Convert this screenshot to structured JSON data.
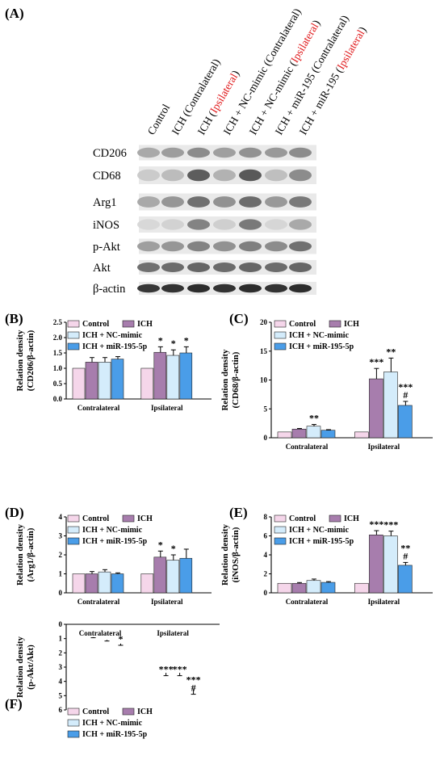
{
  "panel_labels": [
    "(A)",
    "(B)",
    "(C)",
    "(D)",
    "(E)",
    "(F)"
  ],
  "blot": {
    "lanes": [
      {
        "prefix": "Control",
        "highlight": "",
        "suffix": ""
      },
      {
        "prefix": "ICH (Contralateral)",
        "highlight": "",
        "suffix": ""
      },
      {
        "prefix": "ICH (",
        "highlight": "Ipsilateral",
        "suffix": ")"
      },
      {
        "prefix": "ICH + NC-mimic (Contralateral)",
        "highlight": "",
        "suffix": ""
      },
      {
        "prefix": "ICH + NC-mimic (",
        "highlight": "Ipsilateral",
        "suffix": ")"
      },
      {
        "prefix": "ICH + miR-195 (Contralateral)",
        "highlight": "",
        "suffix": ""
      },
      {
        "prefix": "ICH + miR-195 (",
        "highlight": "Ipsilateral",
        "suffix": ")"
      }
    ],
    "highlight_color": "#e0191b",
    "proteins": [
      "CD206",
      "CD68",
      "Arg1",
      "iNOS",
      "p-Akt",
      "Akt",
      "β-actin"
    ],
    "band_intensity": [
      [
        0.3,
        0.36,
        0.45,
        0.35,
        0.42,
        0.38,
        0.45
      ],
      [
        0.12,
        0.2,
        0.7,
        0.25,
        0.72,
        0.18,
        0.45
      ],
      [
        0.3,
        0.4,
        0.6,
        0.42,
        0.62,
        0.38,
        0.55
      ],
      [
        0.05,
        0.08,
        0.5,
        0.1,
        0.55,
        0.06,
        0.3
      ],
      [
        0.35,
        0.4,
        0.5,
        0.42,
        0.52,
        0.45,
        0.6
      ],
      [
        0.6,
        0.62,
        0.65,
        0.62,
        0.65,
        0.62,
        0.65
      ],
      [
        0.9,
        0.92,
        0.95,
        0.92,
        0.95,
        0.92,
        0.95
      ]
    ]
  },
  "legend_labels": [
    "Control",
    "ICH",
    "ICH + NC-mimic",
    "ICH + miR-195-5p"
  ],
  "colors": {
    "Control": "#f5d6ea",
    "ICH": "#a77dad",
    "ICH + NC-mimic": "#d4ecfb",
    "ICH + miR-195-5p": "#4a9de8"
  },
  "chart_data": [
    {
      "panel": "(B)",
      "type": "bar",
      "categories": [
        "Contralateral",
        "Ipsilateral"
      ],
      "ylabel": [
        "Relation density",
        "(CD206/β-actin)"
      ],
      "ylim": [
        0,
        2.5
      ],
      "yticks": [
        0,
        0.5,
        1.0,
        1.5,
        2.0,
        2.5
      ],
      "series": [
        {
          "name": "Control",
          "values": [
            1.0,
            1.0
          ],
          "errors": [
            0,
            0
          ],
          "marks": [
            "",
            ""
          ]
        },
        {
          "name": "ICH",
          "values": [
            1.2,
            1.52
          ],
          "errors": [
            0.15,
            0.18
          ],
          "marks": [
            "",
            "*"
          ]
        },
        {
          "name": "ICH + NC-mimic",
          "values": [
            1.2,
            1.42
          ],
          "errors": [
            0.15,
            0.18
          ],
          "marks": [
            "",
            "*"
          ]
        },
        {
          "name": "ICH + miR-195-5p",
          "values": [
            1.3,
            1.5
          ],
          "errors": [
            0.08,
            0.2
          ],
          "marks": [
            "",
            "*"
          ]
        }
      ]
    },
    {
      "panel": "(C)",
      "type": "bar",
      "categories": [
        "Contralateral",
        "Ipsilateral"
      ],
      "ylabel": [
        "Relation density",
        "(CD68/β-actin)"
      ],
      "ylim": [
        0,
        20
      ],
      "yticks": [
        0,
        5,
        10,
        15,
        20
      ],
      "series": [
        {
          "name": "Control",
          "values": [
            1.0,
            1.0
          ],
          "errors": [
            0,
            0
          ],
          "marks": [
            "",
            ""
          ]
        },
        {
          "name": "ICH",
          "values": [
            1.5,
            10.2
          ],
          "errors": [
            0.1,
            1.8
          ],
          "marks": [
            "",
            "***"
          ]
        },
        {
          "name": "ICH + NC-mimic",
          "values": [
            2.0,
            11.4
          ],
          "errors": [
            0.3,
            2.4
          ],
          "marks": [
            "**",
            "**"
          ]
        },
        {
          "name": "ICH + miR-195-5p",
          "values": [
            1.3,
            5.6
          ],
          "errors": [
            0.1,
            0.7
          ],
          "marks": [
            "",
            "***\n#"
          ]
        }
      ]
    },
    {
      "panel": "(D)",
      "type": "bar",
      "categories": [
        "Contralateral",
        "Ipsilateral"
      ],
      "ylabel": [
        "Relation density",
        "(Arg1/β-actin)"
      ],
      "ylim": [
        0,
        4
      ],
      "yticks": [
        0,
        1,
        2,
        3,
        4
      ],
      "series": [
        {
          "name": "Control",
          "values": [
            1.0,
            1.0
          ],
          "errors": [
            0,
            0
          ],
          "marks": [
            "",
            ""
          ]
        },
        {
          "name": "ICH",
          "values": [
            1.0,
            1.88
          ],
          "errors": [
            0.12,
            0.32
          ],
          "marks": [
            "",
            "*"
          ]
        },
        {
          "name": "ICH + NC-mimic",
          "values": [
            1.1,
            1.72
          ],
          "errors": [
            0.12,
            0.28
          ],
          "marks": [
            "",
            "*"
          ]
        },
        {
          "name": "ICH + miR-195-5p",
          "values": [
            1.0,
            1.82
          ],
          "errors": [
            0.05,
            0.48
          ],
          "marks": [
            "",
            ""
          ]
        }
      ]
    },
    {
      "panel": "(E)",
      "type": "bar",
      "categories": [
        "Contralateral",
        "Ipsilateral"
      ],
      "ylabel": [
        "Relation density",
        "(iNOS/β-actin)"
      ],
      "ylim": [
        0,
        8
      ],
      "yticks": [
        0,
        2,
        4,
        6,
        8
      ],
      "series": [
        {
          "name": "Control",
          "values": [
            1.0,
            1.0
          ],
          "errors": [
            0,
            0
          ],
          "marks": [
            "",
            ""
          ]
        },
        {
          "name": "ICH",
          "values": [
            1.0,
            6.1
          ],
          "errors": [
            0.08,
            0.45
          ],
          "marks": [
            "",
            "***"
          ]
        },
        {
          "name": "ICH + NC-mimic",
          "values": [
            1.3,
            6.0
          ],
          "errors": [
            0.15,
            0.5
          ],
          "marks": [
            "",
            "***"
          ]
        },
        {
          "name": "ICH + miR-195-5p",
          "values": [
            1.1,
            2.9
          ],
          "errors": [
            0.08,
            0.3
          ],
          "marks": [
            "",
            "**\n#"
          ]
        }
      ]
    },
    {
      "panel": "(F)",
      "type": "bar",
      "categories": [
        "Contralateral",
        "Ipsilateral"
      ],
      "ylabel": [
        "Relation density",
        "(p-Akt/Akt)"
      ],
      "ylim": [
        0,
        6
      ],
      "yticks": [
        0,
        1,
        2,
        3,
        4,
        5,
        6
      ],
      "series": [
        {
          "name": "Control",
          "values": [
            1.0,
            1.0
          ],
          "errors": [
            0,
            0
          ],
          "marks": [
            "",
            ""
          ]
        },
        {
          "name": "ICH",
          "values": [
            0.9,
            3.4
          ],
          "errors": [
            0.04,
            0.2
          ],
          "marks": [
            "",
            "***"
          ]
        },
        {
          "name": "ICH + NC-mimic",
          "values": [
            1.1,
            3.4
          ],
          "errors": [
            0.07,
            0.2
          ],
          "marks": [
            "",
            "***"
          ]
        },
        {
          "name": "ICH + miR-195-5p",
          "values": [
            1.35,
            4.55
          ],
          "errors": [
            0.12,
            0.35
          ],
          "marks": [
            "*",
            "***\n#"
          ]
        }
      ]
    }
  ]
}
